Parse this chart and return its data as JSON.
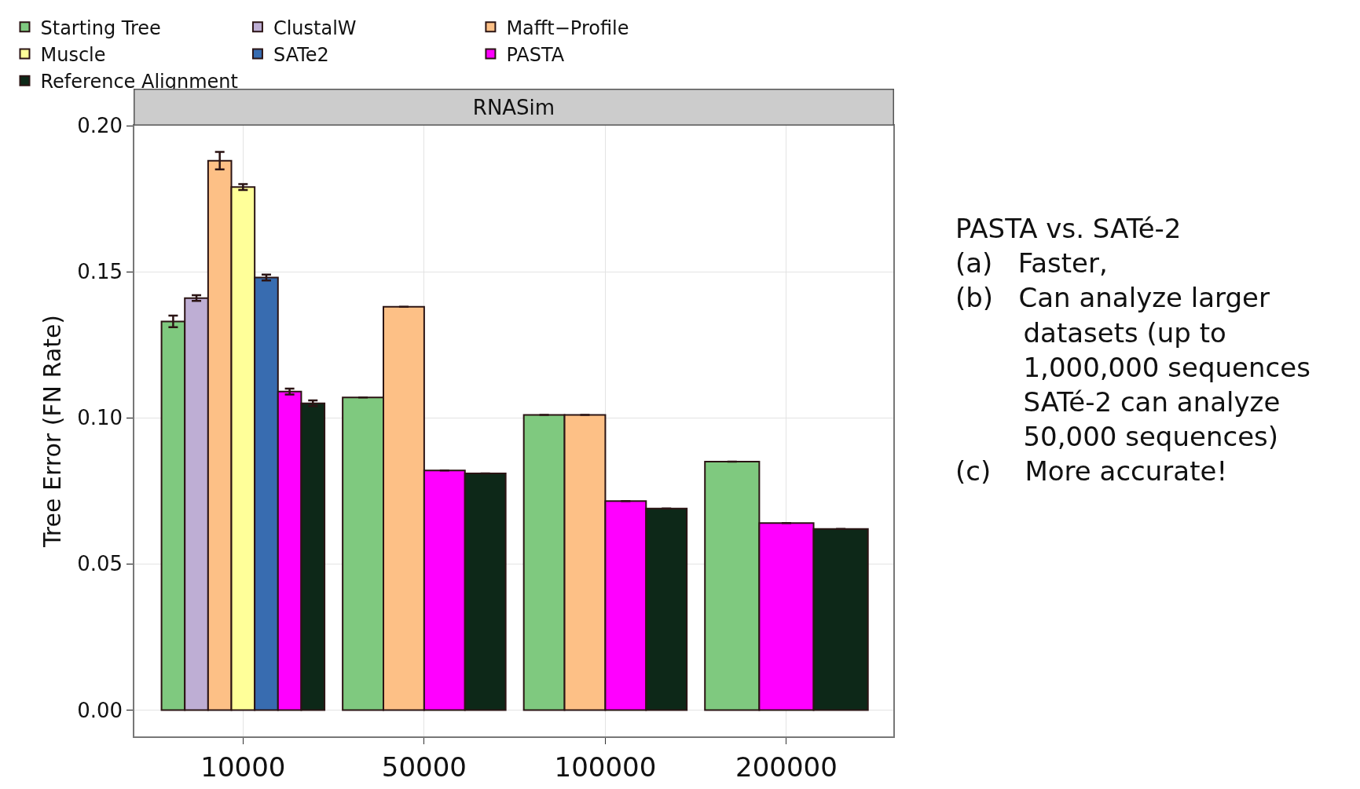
{
  "chart_data": {
    "type": "bar",
    "title": "RNASim",
    "ylabel": "Tree Error (FN Rate)",
    "categories": [
      "10000",
      "50000",
      "100000",
      "200000"
    ],
    "series": [
      {
        "name": "Starting Tree",
        "color": "#7fc97f",
        "values": [
          0.133,
          0.107,
          0.101,
          0.085
        ],
        "errors": [
          0.002,
          null,
          null,
          null
        ]
      },
      {
        "name": "ClustalW",
        "color": "#beaed4",
        "values": [
          0.141,
          null,
          null,
          null
        ],
        "errors": [
          0.001,
          null,
          null,
          null
        ]
      },
      {
        "name": "Mafft−Profile",
        "color": "#fdc086",
        "values": [
          0.188,
          0.138,
          0.101,
          null
        ],
        "errors": [
          0.003,
          null,
          null,
          null
        ]
      },
      {
        "name": "Muscle",
        "color": "#ffff99",
        "values": [
          0.179,
          null,
          null,
          null
        ],
        "errors": [
          0.001,
          null,
          null,
          null
        ]
      },
      {
        "name": "SATe2",
        "color": "#386cb0",
        "values": [
          0.148,
          null,
          null,
          null
        ],
        "errors": [
          0.001,
          null,
          null,
          null
        ]
      },
      {
        "name": "PASTA",
        "color": "#ff00ff",
        "values": [
          0.109,
          0.082,
          0.0715,
          0.064
        ],
        "errors": [
          0.001,
          null,
          null,
          null
        ]
      },
      {
        "name": "Reference Alignment",
        "color": "#0d2818",
        "values": [
          0.105,
          0.081,
          0.069,
          0.062
        ],
        "errors": [
          0.001,
          null,
          null,
          null
        ]
      }
    ],
    "ylim": [
      -0.009,
      0.2
    ],
    "yticks": [
      {
        "value": 0,
        "label": "0.00"
      },
      {
        "value": 0.05,
        "label": "0.05"
      },
      {
        "value": 0.1,
        "label": "0.10"
      },
      {
        "value": 0.15,
        "label": "0.15"
      },
      {
        "value": 0.2,
        "label": "0.20"
      }
    ],
    "grid": true,
    "legend": "top",
    "annotations": [
      "PASTA vs. SATé-2\n(a)   Faster,\n(b)   Can analyze larger\n        datasets (up to\n        1,000,000 sequences\n        SATé-2 can analyze\n        50,000 sequences)\n(c)    More accurate!"
    ]
  }
}
